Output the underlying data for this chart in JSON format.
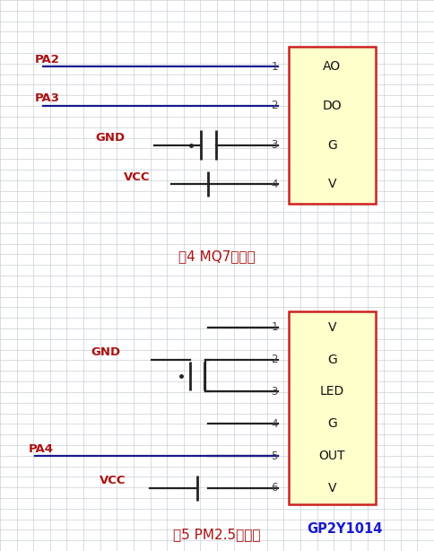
{
  "fig_bg": "#ffffff",
  "grid_color": "#c8d0d8",
  "grid_bg": "#e8eef4",
  "d1": {
    "title": "图4 MQ7原理图",
    "box_pins": [
      "AO",
      "DO",
      "G",
      "V"
    ],
    "pin_nums": [
      "1",
      "2",
      "3",
      "4"
    ],
    "box_fill": "#ffffcc",
    "box_edge": "#cc2222"
  },
  "d2": {
    "title": "图5 PM2.5原理图",
    "chip_label": "GP2Y1014",
    "box_pins": [
      "V",
      "G",
      "LED",
      "G",
      "OUT",
      "V"
    ],
    "pin_nums": [
      "1",
      "2",
      "3",
      "4",
      "5",
      "6"
    ],
    "box_fill": "#ffffcc",
    "box_edge": "#cc2222"
  },
  "label_color": "#aa1111",
  "wire_dark": "#222222",
  "wire_blue": "#1a1a8c",
  "pin_num_color": "#444444",
  "chip_label_color": "#1a1acc"
}
